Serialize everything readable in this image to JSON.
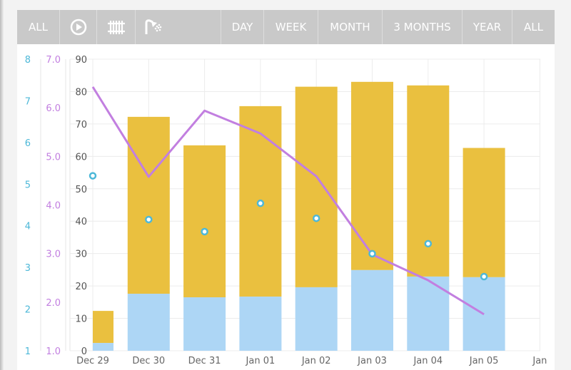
{
  "toolbar": {
    "all_label": "ALL",
    "icons": [
      "play-circle-icon",
      "radiator-icon",
      "shower-icon"
    ],
    "ranges": [
      "DAY",
      "WEEK",
      "MONTH",
      "3 MONTHS",
      "YEAR",
      "ALL"
    ]
  },
  "chart_data": {
    "type": "bar",
    "categories": [
      "Dec 29",
      "Dec 30",
      "Dec 31",
      "Jan 01",
      "Jan 02",
      "Jan 03",
      "Jan 04",
      "Jan 05",
      "Jan"
    ],
    "left_axes": [
      {
        "ticks": [
          "1",
          "2",
          "3",
          "4",
          "5",
          "6",
          "7",
          "8"
        ],
        "range": [
          1,
          8
        ],
        "color": "#4db8d8"
      },
      {
        "ticks": [
          "1.0",
          "2.0",
          "3.0",
          "4.0",
          "5.0",
          "6.0",
          "7.0"
        ],
        "range": [
          1,
          7
        ],
        "color": "#c27fe0"
      },
      {
        "ticks": [
          "0",
          "10",
          "20",
          "30",
          "40",
          "50",
          "60",
          "70",
          "80",
          "90"
        ],
        "range": [
          0,
          90
        ],
        "color": "#555555"
      }
    ],
    "stacked_bars": {
      "blue": [
        2.4,
        17.6,
        16.5,
        16.7,
        19.6,
        24.9,
        22.9,
        22.7
      ],
      "total": [
        12.3,
        72.2,
        63.4,
        75.5,
        81.5,
        83.0,
        81.9,
        62.6
      ],
      "colors": {
        "blue": "#add6f5",
        "yellow": "#eac03f"
      }
    },
    "line_series": {
      "values": [
        6.43,
        4.58,
        5.94,
        5.47,
        4.59,
        2.98,
        2.45,
        1.75
      ],
      "axis": 1,
      "color": "#c27fe0"
    },
    "point_series": {
      "values": [
        5.2,
        4.15,
        3.86,
        4.54,
        4.18,
        3.33,
        3.57,
        2.78
      ],
      "axis": 0,
      "color": "#4db8d8"
    },
    "grid": true
  }
}
